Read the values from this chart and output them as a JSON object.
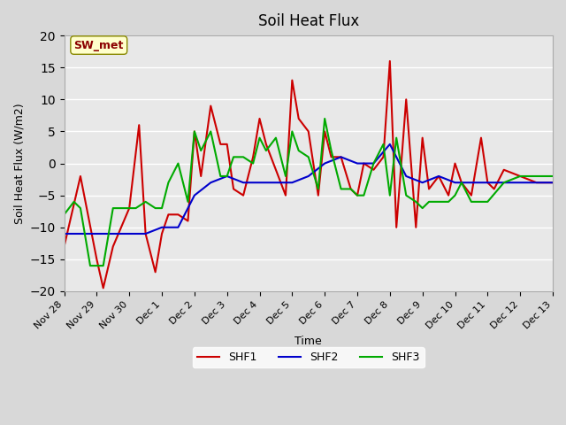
{
  "title": "Soil Heat Flux",
  "ylabel": "Soil Heat Flux (W/m2)",
  "xlabel": "Time",
  "ylim": [
    -20,
    20
  ],
  "background_color": "#e8e8e8",
  "plot_bg_color": "#e8e8e8",
  "annotation_text": "SW_met",
  "annotation_color": "#8b0000",
  "annotation_bg": "#ffffcc",
  "series": {
    "SHF1": {
      "color": "#cc0000",
      "linewidth": 1.5
    },
    "SHF2": {
      "color": "#0000cc",
      "linewidth": 1.5
    },
    "SHF3": {
      "color": "#00aa00",
      "linewidth": 1.5
    }
  },
  "x_ticks": [
    0,
    1,
    2,
    3,
    4,
    5,
    6,
    7,
    8,
    9,
    10,
    11,
    12,
    13,
    14,
    15
  ],
  "x_tick_labels": [
    "Nov 28",
    "Nov 29",
    "Nov 30",
    "Dec 1",
    "Dec 2",
    "Dec 3",
    "Dec 4",
    "Dec 5",
    "Dec 6",
    "Dec 7",
    "Dec 8",
    "Dec 9",
    "Dec 10",
    "Dec 11",
    "Dec 12",
    "Dec 13"
  ],
  "SHF1_x": [
    0,
    0.5,
    1,
    1.2,
    1.5,
    2,
    2.3,
    2.5,
    2.8,
    3,
    3.2,
    3.5,
    3.8,
    4,
    4.2,
    4.5,
    4.8,
    5,
    5.2,
    5.5,
    5.8,
    6,
    6.2,
    6.5,
    6.8,
    7,
    7.2,
    7.5,
    7.8,
    8,
    8.2,
    8.5,
    8.8,
    9,
    9.2,
    9.5,
    9.8,
    10,
    10.2,
    10.5,
    10.8,
    11,
    11.2,
    11.5,
    11.8,
    12,
    12.2,
    12.5,
    12.8,
    13,
    13.2,
    13.5,
    14,
    14.5,
    15
  ],
  "SHF1_y": [
    -13,
    -2,
    -15,
    -19.5,
    -13,
    -7,
    6,
    -11,
    -17,
    -11,
    -8,
    -8,
    -9,
    5,
    -2,
    9,
    3,
    3,
    -4,
    -5,
    1,
    7,
    3,
    -1,
    -5,
    13,
    7,
    5,
    -5,
    5,
    1,
    1,
    -4,
    -5,
    0,
    -1,
    1,
    16,
    -10,
    10,
    -10,
    4,
    -4,
    -2,
    -5,
    0,
    -3,
    -5,
    4,
    -3,
    -4,
    -1,
    -2,
    -3,
    -3
  ],
  "SHF2_x": [
    0,
    0.5,
    1,
    1.5,
    2,
    2.5,
    3,
    3.5,
    4,
    4.5,
    5,
    5.5,
    6,
    6.5,
    7,
    7.5,
    8,
    8.5,
    9,
    9.5,
    10,
    10.5,
    11,
    11.5,
    12,
    12.5,
    13,
    13.5,
    14,
    14.5,
    15
  ],
  "SHF2_y": [
    -11,
    -11,
    -11,
    -11,
    -11,
    -11,
    -10,
    -10,
    -5,
    -3,
    -2,
    -3,
    -3,
    -3,
    -3,
    -2,
    0,
    1,
    0,
    0,
    3,
    -2,
    -3,
    -2,
    -3,
    -3,
    -3,
    -3,
    -3,
    -3,
    -3
  ],
  "SHF3_x": [
    0,
    0.3,
    0.5,
    0.8,
    1,
    1.2,
    1.5,
    1.8,
    2,
    2.2,
    2.5,
    2.8,
    3,
    3.2,
    3.5,
    3.8,
    4,
    4.2,
    4.5,
    4.8,
    5,
    5.2,
    5.5,
    5.8,
    6,
    6.2,
    6.5,
    6.8,
    7,
    7.2,
    7.5,
    7.8,
    8,
    8.2,
    8.5,
    8.8,
    9,
    9.2,
    9.5,
    9.8,
    10,
    10.2,
    10.5,
    10.8,
    11,
    11.2,
    11.5,
    11.8,
    12,
    12.2,
    12.5,
    12.8,
    13,
    13.5,
    14,
    14.5,
    15
  ],
  "SHF3_y": [
    -8,
    -6,
    -7,
    -16,
    -16,
    -16,
    -7,
    -7,
    -7,
    -7,
    -6,
    -7,
    -7,
    -3,
    0,
    -6,
    5,
    2,
    5,
    -2,
    -2,
    1,
    1,
    0,
    4,
    2,
    4,
    -2,
    5,
    2,
    1,
    -4,
    7,
    2,
    -4,
    -4,
    -5,
    -5,
    0,
    3,
    -5,
    4,
    -5,
    -6,
    -7,
    -6,
    -6,
    -6,
    -5,
    -3,
    -6,
    -6,
    -6,
    -3,
    -2,
    -2,
    -2
  ]
}
